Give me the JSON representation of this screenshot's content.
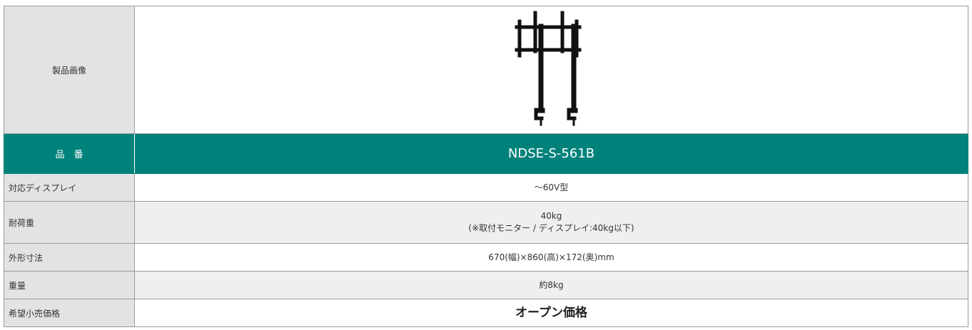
{
  "table": {
    "image_row": {
      "label": "製品画像"
    },
    "header_row": {
      "label": "品　番",
      "value": "NDSE-S-561B"
    },
    "rows": [
      {
        "label": "対応ディスプレイ",
        "value": [
          "～60V型"
        ]
      },
      {
        "label": "耐荷重",
        "value": [
          "40kg",
          "(※取付モニター / ディスプレイ:40kg以下)"
        ]
      },
      {
        "label": "外形寸法",
        "value": [
          "670(幅)×860(高)×172(奥)mm"
        ]
      },
      {
        "label": "重量",
        "value": [
          "約8kg"
        ]
      },
      {
        "label": "希望小売価格",
        "value": [
          "オープン価格"
        ]
      }
    ]
  }
}
